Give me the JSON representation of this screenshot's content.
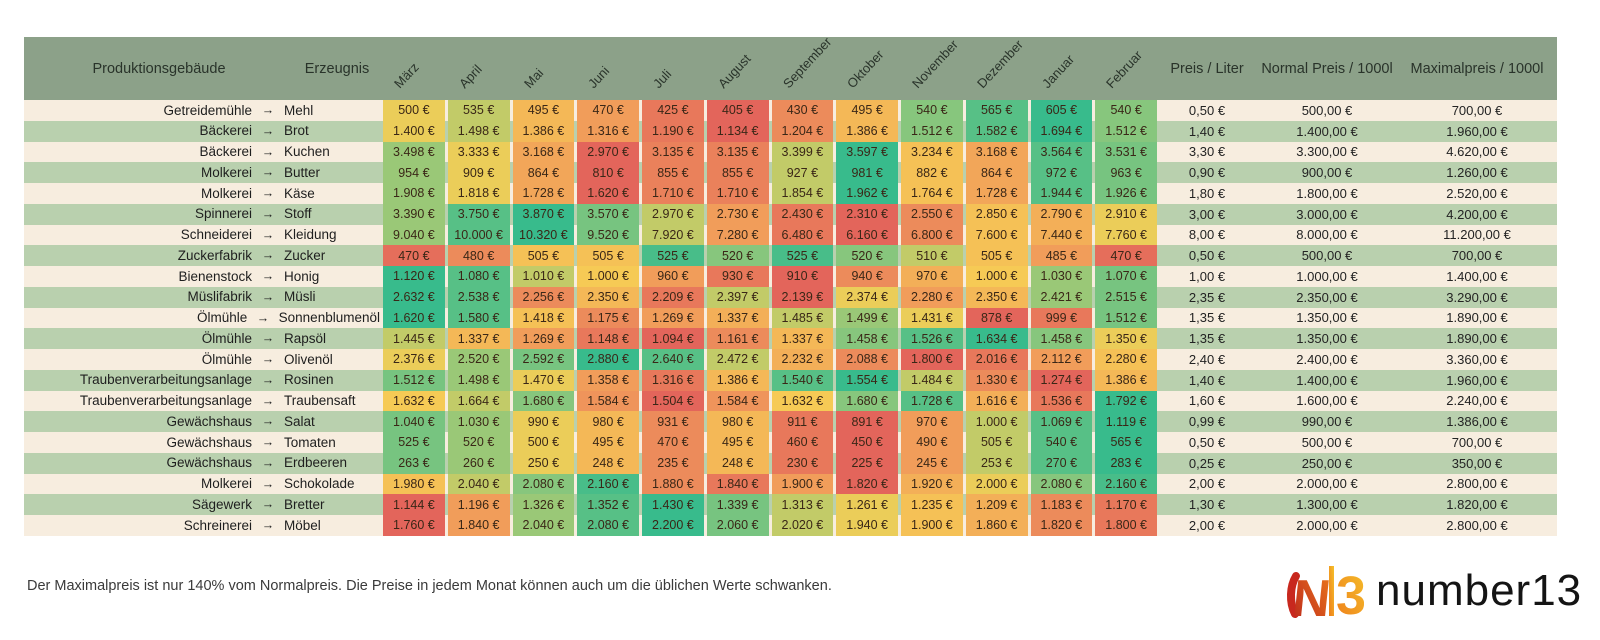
{
  "chart_data": {
    "type": "heatmap",
    "title": "",
    "arrow": "→",
    "currency_suffix": " €",
    "headers": {
      "building": "Produktionsgebäude",
      "product": "Erzeugnis",
      "price_per_liter": "Preis / Liter",
      "normal_price": "Normal Preis / 1000l",
      "max_price": "Maximalpreis / 1000l"
    },
    "months": [
      "März",
      "April",
      "Mai",
      "Juni",
      "Juli",
      "August",
      "September",
      "Oktober",
      "November",
      "Dezember",
      "Januar",
      "Februar"
    ],
    "rows": [
      {
        "building": "Getreidemühle",
        "product": "Mehl",
        "monthly": [
          500,
          535,
          495,
          470,
          425,
          405,
          430,
          495,
          540,
          565,
          605,
          540
        ],
        "price_per_liter": "0,50 €",
        "normal_price": "500,00 €",
        "max_price": "700,00 €"
      },
      {
        "building": "Bäckerei",
        "product": "Brot",
        "monthly": [
          1400,
          1498,
          1386,
          1316,
          1190,
          1134,
          1204,
          1386,
          1512,
          1582,
          1694,
          1512
        ],
        "price_per_liter": "1,40 €",
        "normal_price": "1.400,00 €",
        "max_price": "1.960,00 €"
      },
      {
        "building": "Bäckerei",
        "product": "Kuchen",
        "monthly": [
          3498,
          3333,
          3168,
          2970,
          3135,
          3135,
          3399,
          3597,
          3234,
          3168,
          3564,
          3531
        ],
        "price_per_liter": "3,30 €",
        "normal_price": "3.300,00 €",
        "max_price": "4.620,00 €"
      },
      {
        "building": "Molkerei",
        "product": "Butter",
        "monthly": [
          954,
          909,
          864,
          810,
          855,
          855,
          927,
          981,
          882,
          864,
          972,
          963
        ],
        "price_per_liter": "0,90 €",
        "normal_price": "900,00 €",
        "max_price": "1.260,00 €"
      },
      {
        "building": "Molkerei",
        "product": "Käse",
        "monthly": [
          1908,
          1818,
          1728,
          1620,
          1710,
          1710,
          1854,
          1962,
          1764,
          1728,
          1944,
          1926
        ],
        "price_per_liter": "1,80 €",
        "normal_price": "1.800,00 €",
        "max_price": "2.520,00 €"
      },
      {
        "building": "Spinnerei",
        "product": "Stoff",
        "monthly": [
          3390,
          3750,
          3870,
          3570,
          2970,
          2730,
          2430,
          2310,
          2550,
          2850,
          2790,
          2910
        ],
        "price_per_liter": "3,00 €",
        "normal_price": "3.000,00 €",
        "max_price": "4.200,00 €"
      },
      {
        "building": "Schneiderei",
        "product": "Kleidung",
        "monthly": [
          9040,
          10000,
          10320,
          9520,
          7920,
          7280,
          6480,
          6160,
          6800,
          7600,
          7440,
          7760
        ],
        "price_per_liter": "8,00 €",
        "normal_price": "8.000,00 €",
        "max_price": "11.200,00 €"
      },
      {
        "building": "Zuckerfabrik",
        "product": "Zucker",
        "monthly": [
          470,
          480,
          505,
          505,
          525,
          520,
          525,
          520,
          510,
          505,
          485,
          470
        ],
        "price_per_liter": "0,50 €",
        "normal_price": "500,00 €",
        "max_price": "700,00 €"
      },
      {
        "building": "Bienenstock",
        "product": "Honig",
        "monthly": [
          1120,
          1080,
          1010,
          1000,
          960,
          930,
          910,
          940,
          970,
          1000,
          1030,
          1070
        ],
        "price_per_liter": "1,00 €",
        "normal_price": "1.000,00 €",
        "max_price": "1.400,00 €"
      },
      {
        "building": "Müslifabrik",
        "product": "Müsli",
        "monthly": [
          2632,
          2538,
          2256,
          2350,
          2209,
          2397,
          2139,
          2374,
          2280,
          2350,
          2421,
          2515
        ],
        "price_per_liter": "2,35 €",
        "normal_price": "2.350,00 €",
        "max_price": "3.290,00 €"
      },
      {
        "building": "Ölmühle",
        "product": "Sonnenblumenöl",
        "monthly": [
          1620,
          1580,
          1418,
          1175,
          1269,
          1337,
          1485,
          1499,
          1431,
          878,
          999,
          1512
        ],
        "price_per_liter": "1,35 €",
        "normal_price": "1.350,00 €",
        "max_price": "1.890,00 €"
      },
      {
        "building": "Ölmühle",
        "product": "Rapsöl",
        "monthly": [
          1445,
          1337,
          1269,
          1148,
          1094,
          1161,
          1337,
          1458,
          1526,
          1634,
          1458,
          1350
        ],
        "price_per_liter": "1,35 €",
        "normal_price": "1.350,00 €",
        "max_price": "1.890,00 €"
      },
      {
        "building": "Ölmühle",
        "product": "Olivenöl",
        "monthly": [
          2376,
          2520,
          2592,
          2880,
          2640,
          2472,
          2232,
          2088,
          1800,
          2016,
          2112,
          2280
        ],
        "price_per_liter": "2,40 €",
        "normal_price": "2.400,00 €",
        "max_price": "3.360,00 €"
      },
      {
        "building": "Traubenverarbeitungsanlage",
        "product": "Rosinen",
        "monthly": [
          1512,
          1498,
          1470,
          1358,
          1316,
          1386,
          1540,
          1554,
          1484,
          1330,
          1274,
          1386
        ],
        "price_per_liter": "1,40 €",
        "normal_price": "1.400,00 €",
        "max_price": "1.960,00 €"
      },
      {
        "building": "Traubenverarbeitungsanlage",
        "product": "Traubensaft",
        "monthly": [
          1632,
          1664,
          1680,
          1584,
          1504,
          1584,
          1632,
          1680,
          1728,
          1616,
          1536,
          1792
        ],
        "price_per_liter": "1,60 €",
        "normal_price": "1.600,00 €",
        "max_price": "2.240,00 €"
      },
      {
        "building": "Gewächshaus",
        "product": "Salat",
        "monthly": [
          1040,
          1030,
          990,
          980,
          931,
          980,
          911,
          891,
          970,
          1000,
          1069,
          1119
        ],
        "price_per_liter": "0,99 €",
        "normal_price": "990,00 €",
        "max_price": "1.386,00 €"
      },
      {
        "building": "Gewächshaus",
        "product": "Tomaten",
        "monthly": [
          525,
          520,
          500,
          495,
          470,
          495,
          460,
          450,
          490,
          505,
          540,
          565
        ],
        "price_per_liter": "0,50 €",
        "normal_price": "500,00 €",
        "max_price": "700,00 €"
      },
      {
        "building": "Gewächshaus",
        "product": "Erdbeeren",
        "monthly": [
          263,
          260,
          250,
          248,
          235,
          248,
          230,
          225,
          245,
          253,
          270,
          283
        ],
        "price_per_liter": "0,25 €",
        "normal_price": "250,00 €",
        "max_price": "350,00 €"
      },
      {
        "building": "Molkerei",
        "product": "Schokolade",
        "monthly": [
          1980,
          2040,
          2080,
          2160,
          1880,
          1840,
          1900,
          1820,
          1920,
          2000,
          2080,
          2160
        ],
        "price_per_liter": "2,00 €",
        "normal_price": "2.000,00 €",
        "max_price": "2.800,00 €"
      },
      {
        "building": "Sägewerk",
        "product": "Bretter",
        "monthly": [
          1144,
          1196,
          1326,
          1352,
          1430,
          1339,
          1313,
          1261,
          1235,
          1209,
          1183,
          1170
        ],
        "price_per_liter": "1,30 €",
        "normal_price": "1.300,00 €",
        "max_price": "1.820,00 €"
      },
      {
        "building": "Schreinerei",
        "product": "Möbel",
        "monthly": [
          1760,
          1840,
          2040,
          2080,
          2200,
          2060,
          2020,
          1940,
          1900,
          1860,
          1820,
          1800
        ],
        "price_per_liter": "2,00 €",
        "normal_price": "2.000,00 €",
        "max_price": "2.800,00 €"
      }
    ],
    "heat_scale": {
      "note": "per-row rank percentile, red = lowest, green = highest",
      "stops": [
        {
          "t": 0.0,
          "color": "#e3655b"
        },
        {
          "t": 0.25,
          "color": "#f0995b"
        },
        {
          "t": 0.52,
          "color": "#f6ce55"
        },
        {
          "t": 0.76,
          "color": "#8bc77c"
        },
        {
          "t": 1.0,
          "color": "#38bb8c"
        }
      ]
    },
    "layout": {
      "header_bg": "#8ca189",
      "row_bg_odd": "#f7eddf",
      "row_bg_even": "#b9d0ae"
    }
  },
  "footnote": "Der Maximalpreis ist nur 140% vom Normalpreis. Die Preise in jedem Monat können auch um die üblichen Werte schwanken.",
  "logo": {
    "mark": "N13",
    "wordmark": "number13",
    "colors": {
      "red": "#c8281e",
      "orange": "#ee7c1b",
      "gold": "#f5c02a",
      "text": "#141414"
    }
  }
}
